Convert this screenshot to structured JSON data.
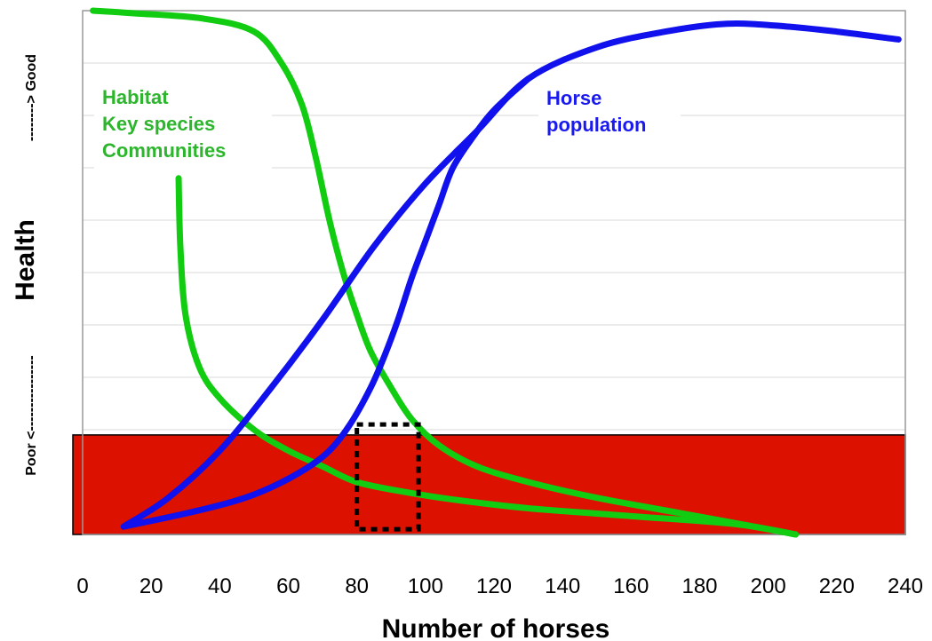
{
  "chart_data": {
    "type": "line",
    "xlabel": "Number of horses",
    "ylabel": {
      "main": "Health",
      "poor_end": "Poor <----------------",
      "good_end": "--------> Good"
    },
    "xlim": [
      0,
      240
    ],
    "x_ticks": [
      "0",
      "20",
      "40",
      "60",
      "80",
      "100",
      "120",
      "140",
      "160",
      "180",
      "200",
      "220",
      "240"
    ],
    "grid": true,
    "colors": {
      "habitat": "#11cc11",
      "horse": "#1111ee",
      "poor_zone": "#dd1100",
      "highlight_box": "#000000",
      "grid": "#d9d9d9"
    },
    "annotations": {
      "habitat": [
        "Habitat",
        "Key species",
        "Communities"
      ],
      "horse": [
        "Horse",
        "population"
      ]
    },
    "poor_zone": {
      "y_from": 0,
      "y_to": 0.19
    },
    "highlight_range": {
      "x_from": 80,
      "x_to": 98,
      "y_from": 0.01,
      "y_to": 0.21
    },
    "series": [
      {
        "key": "habitat_a",
        "x": [
          3,
          15,
          35,
          50,
          58,
          64,
          68,
          72,
          76,
          80,
          84,
          90,
          96,
          104,
          115,
          130,
          150,
          175,
          200,
          208
        ],
        "y": [
          1.0,
          0.995,
          0.985,
          0.96,
          0.9,
          0.82,
          0.72,
          0.6,
          0.5,
          0.42,
          0.35,
          0.28,
          0.22,
          0.17,
          0.13,
          0.1,
          0.07,
          0.04,
          0.01,
          0.0
        ]
      },
      {
        "key": "habitat_b",
        "x": [
          28,
          28.5,
          30,
          34,
          40,
          50,
          60,
          70,
          80,
          95,
          110,
          130,
          160,
          190,
          208
        ],
        "y": [
          0.68,
          0.55,
          0.42,
          0.32,
          0.26,
          0.2,
          0.16,
          0.13,
          0.1,
          0.08,
          0.065,
          0.05,
          0.035,
          0.02,
          0.0
        ]
      },
      {
        "key": "horse_a",
        "x": [
          12,
          25,
          40,
          55,
          70,
          85,
          100,
          115,
          130,
          150,
          170,
          188,
          205,
          220,
          238
        ],
        "y": [
          0.015,
          0.07,
          0.16,
          0.28,
          0.41,
          0.55,
          0.67,
          0.77,
          0.87,
          0.93,
          0.96,
          0.975,
          0.97,
          0.96,
          0.945
        ]
      },
      {
        "key": "horse_b",
        "x": [
          12,
          30,
          45,
          55,
          65,
          72,
          78,
          84,
          88,
          92,
          96,
          100,
          104,
          108,
          114,
          120,
          130
        ],
        "y": [
          0.015,
          0.04,
          0.065,
          0.09,
          0.125,
          0.16,
          0.21,
          0.28,
          0.34,
          0.41,
          0.49,
          0.56,
          0.63,
          0.7,
          0.76,
          0.81,
          0.87
        ]
      }
    ]
  }
}
